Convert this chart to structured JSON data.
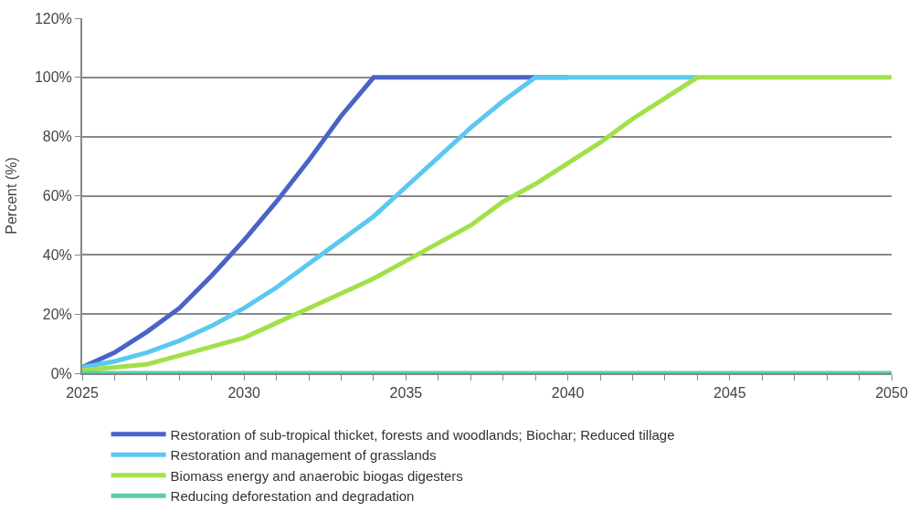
{
  "chart_data": {
    "type": "line",
    "ylabel": "Percent (%)",
    "x": [
      2025,
      2026,
      2027,
      2028,
      2029,
      2030,
      2031,
      2032,
      2033,
      2034,
      2035,
      2036,
      2037,
      2038,
      2039,
      2040,
      2041,
      2042,
      2043,
      2044,
      2045,
      2046,
      2047,
      2048,
      2049,
      2050
    ],
    "series": [
      {
        "name": "Restoration of sub-tropical thicket, forests and woodlands; Biochar; Reduced tillage",
        "color": "#4a63c8",
        "values": [
          2,
          7,
          14,
          22,
          33,
          45,
          58,
          72,
          87,
          100,
          100,
          100,
          100,
          100,
          100,
          100,
          null,
          null,
          null,
          null,
          null,
          null,
          null,
          null,
          null,
          null
        ]
      },
      {
        "name": "Restoration and management of grasslands",
        "color": "#5bc8f0",
        "values": [
          2,
          4,
          7,
          11,
          16,
          22,
          29,
          37,
          45,
          53,
          63,
          73,
          83,
          92,
          100,
          100,
          100,
          100,
          100,
          100,
          null,
          null,
          null,
          null,
          null,
          null
        ]
      },
      {
        "name": "Biomass energy and anaerobic biogas digesters",
        "color": "#a2e04a",
        "values": [
          1,
          2,
          3,
          6,
          9,
          12,
          17,
          22,
          27,
          32,
          38,
          44,
          50,
          58,
          64,
          71,
          78,
          86,
          93,
          100,
          100,
          100,
          100,
          100,
          100,
          100
        ]
      },
      {
        "name": "Reducing deforestation and degradation",
        "color": "#5bcdaa",
        "values": [
          0,
          0,
          0,
          0,
          0,
          0,
          0,
          0,
          0,
          0,
          0,
          0,
          0,
          0,
          0,
          0,
          0,
          0,
          0,
          0,
          0,
          0,
          0,
          0,
          0,
          0
        ]
      }
    ],
    "xlim": [
      2025,
      2050
    ],
    "xticks": [
      2025,
      {
        "value": 2026,
        "label": null
      },
      {
        "value": 2027,
        "label": null
      },
      {
        "value": 2028,
        "label": null
      },
      {
        "value": 2029,
        "label": null
      },
      2030,
      {
        "value": 2031,
        "label": null
      },
      {
        "value": 2032,
        "label": null
      },
      {
        "value": 2033,
        "label": null
      },
      {
        "value": 2034,
        "label": null
      },
      2035,
      {
        "value": 2036,
        "label": null
      },
      {
        "value": 2037,
        "label": null
      },
      {
        "value": 2038,
        "label": null
      },
      {
        "value": 2039,
        "label": null
      },
      2040,
      {
        "value": 2041,
        "label": null
      },
      {
        "value": 2042,
        "label": null
      },
      {
        "value": 2043,
        "label": null
      },
      {
        "value": 2044,
        "label": null
      },
      2045,
      {
        "value": 2046,
        "label": null
      },
      {
        "value": 2047,
        "label": null
      },
      {
        "value": 2048,
        "label": null
      },
      {
        "value": 2049,
        "label": null
      },
      2050
    ],
    "ylim": [
      0,
      120
    ],
    "yticks": [
      {
        "value": 0,
        "label": "0%"
      },
      {
        "value": 20,
        "label": "20%"
      },
      {
        "value": 40,
        "label": "40%"
      },
      {
        "value": 60,
        "label": "60%"
      },
      {
        "value": 80,
        "label": "80%"
      },
      {
        "value": 100,
        "label": "100%"
      },
      {
        "value": 120,
        "label": "120%"
      }
    ],
    "grid": "y",
    "legend": "bottom",
    "marker": "none",
    "line_style": "solid"
  }
}
